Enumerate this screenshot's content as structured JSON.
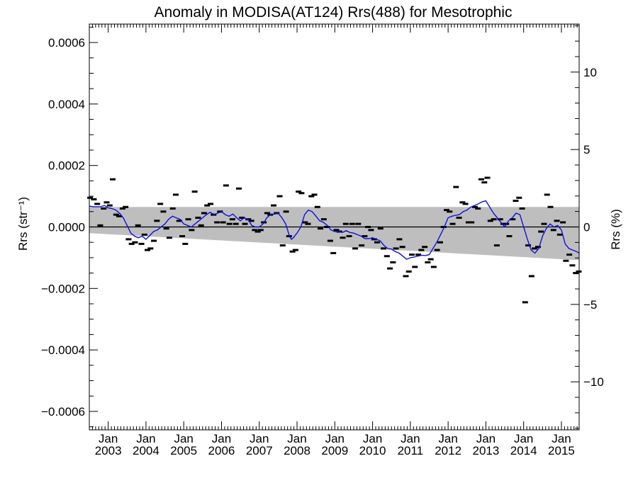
{
  "chart_data": {
    "type": "scatter",
    "title": "Anomaly in MODISA(AT124) Rrs(488) for Mesotrophic",
    "ylabel": "Rrs (str⁻¹)",
    "ylabel_right": "Rrs (%)",
    "xlabel": "",
    "xlim": [
      2002.5,
      2015.47
    ],
    "ylim": [
      -0.00066,
      0.00066
    ],
    "ylim_right": [
      -13.1,
      13.1
    ],
    "x_ticks": [
      {
        "value": 2003.0,
        "month": "Jan",
        "year": "2003"
      },
      {
        "value": 2004.0,
        "month": "Jan",
        "year": "2004"
      },
      {
        "value": 2005.0,
        "month": "Jan",
        "year": "2005"
      },
      {
        "value": 2006.0,
        "month": "Jan",
        "year": "2006"
      },
      {
        "value": 2007.0,
        "month": "Jan",
        "year": "2007"
      },
      {
        "value": 2008.0,
        "month": "Jan",
        "year": "2008"
      },
      {
        "value": 2009.0,
        "month": "Jan",
        "year": "2009"
      },
      {
        "value": 2010.0,
        "month": "Jan",
        "year": "2010"
      },
      {
        "value": 2011.0,
        "month": "Jan",
        "year": "2011"
      },
      {
        "value": 2012.0,
        "month": "Jan",
        "year": "2012"
      },
      {
        "value": 2013.0,
        "month": "Jan",
        "year": "2013"
      },
      {
        "value": 2014.0,
        "month": "Jan",
        "year": "2014"
      },
      {
        "value": 2015.0,
        "month": "Jan",
        "year": "2015"
      }
    ],
    "y_ticks_left": [
      {
        "value": 0.0006,
        "label": "0.0006"
      },
      {
        "value": 0.0004,
        "label": "0.0004"
      },
      {
        "value": 0.0002,
        "label": "0.0002"
      },
      {
        "value": 0.0,
        "label": "0.0000"
      },
      {
        "value": -0.0002,
        "label": "−0.0002"
      },
      {
        "value": -0.0004,
        "label": "−0.0004"
      },
      {
        "value": -0.0006,
        "label": "−0.0006"
      }
    ],
    "y_ticks_right": [
      {
        "value": 10,
        "label": "10"
      },
      {
        "value": 5,
        "label": "5"
      },
      {
        "value": 0,
        "label": "0"
      },
      {
        "value": -5,
        "label": "−5"
      },
      {
        "value": -10,
        "label": "−10"
      }
    ],
    "band": {
      "upper": [
        [
          2002.5,
          6.5e-05
        ],
        [
          2015.47,
          6.5e-05
        ]
      ],
      "lower": [
        [
          2002.5,
          -2e-05
        ],
        [
          2015.47,
          -0.000108
        ]
      ],
      "color": "#bebebe"
    },
    "zero_line": 0,
    "points": [
      {
        "x": 2002.52,
        "y": 9.5e-05
      },
      {
        "x": 2002.62,
        "y": 9e-05
      },
      {
        "x": 2002.71,
        "y": 7.5e-05
      },
      {
        "x": 2002.79,
        "y": 5e-06
      },
      {
        "x": 2002.88,
        "y": 6e-05
      },
      {
        "x": 2002.96,
        "y": 8e-05
      },
      {
        "x": 2003.04,
        "y": 7e-05
      },
      {
        "x": 2003.12,
        "y": 0.000155
      },
      {
        "x": 2003.21,
        "y": 4e-05
      },
      {
        "x": 2003.29,
        "y": 3.5e-05
      },
      {
        "x": 2003.38,
        "y": 6e-05
      },
      {
        "x": 2003.46,
        "y": 6.5e-05
      },
      {
        "x": 2003.54,
        "y": -4e-05
      },
      {
        "x": 2003.62,
        "y": -5.5e-05
      },
      {
        "x": 2003.71,
        "y": -5e-05
      },
      {
        "x": 2003.79,
        "y": 5e-06
      },
      {
        "x": 2003.88,
        "y": -5.5e-05
      },
      {
        "x": 2003.96,
        "y": -2.5e-05
      },
      {
        "x": 2004.04,
        "y": -7.5e-05
      },
      {
        "x": 2004.12,
        "y": -7e-05
      },
      {
        "x": 2004.21,
        "y": -4.5e-05
      },
      {
        "x": 2004.29,
        "y": 2e-05
      },
      {
        "x": 2004.38,
        "y": 7.5e-05
      },
      {
        "x": 2004.46,
        "y": 5e-05
      },
      {
        "x": 2004.54,
        "y": -5e-06
      },
      {
        "x": 2004.62,
        "y": -3.5e-05
      },
      {
        "x": 2004.71,
        "y": 6e-05
      },
      {
        "x": 2004.79,
        "y": 0.000105
      },
      {
        "x": 2004.88,
        "y": 2e-05
      },
      {
        "x": 2004.96,
        "y": -3e-05
      },
      {
        "x": 2005.04,
        "y": -5.5e-05
      },
      {
        "x": 2005.12,
        "y": 2.5e-05
      },
      {
        "x": 2005.21,
        "y": -1e-05
      },
      {
        "x": 2005.29,
        "y": 0.000115
      },
      {
        "x": 2005.38,
        "y": 3e-05
      },
      {
        "x": 2005.46,
        "y": 5e-06
      },
      {
        "x": 2005.54,
        "y": 4.5e-05
      },
      {
        "x": 2005.62,
        "y": 7e-05
      },
      {
        "x": 2005.71,
        "y": 7.5e-05
      },
      {
        "x": 2005.79,
        "y": 4e-05
      },
      {
        "x": 2005.88,
        "y": 1.5e-05
      },
      {
        "x": 2005.96,
        "y": 5e-05
      },
      {
        "x": 2006.04,
        "y": 1.5e-05
      },
      {
        "x": 2006.12,
        "y": 0.000135
      },
      {
        "x": 2006.21,
        "y": 1e-05
      },
      {
        "x": 2006.29,
        "y": 2.5e-05
      },
      {
        "x": 2006.38,
        "y": 1e-05
      },
      {
        "x": 2006.46,
        "y": 0.000125
      },
      {
        "x": 2006.54,
        "y": 3e-05
      },
      {
        "x": 2006.62,
        "y": 1e-05
      },
      {
        "x": 2006.71,
        "y": 2.5e-05
      },
      {
        "x": 2006.79,
        "y": 2e-05
      },
      {
        "x": 2006.88,
        "y": -1e-05
      },
      {
        "x": 2006.96,
        "y": -1.5e-05
      },
      {
        "x": 2007.04,
        "y": -1e-05
      },
      {
        "x": 2007.12,
        "y": 1.5e-05
      },
      {
        "x": 2007.21,
        "y": 4.5e-05
      },
      {
        "x": 2007.29,
        "y": 4e-05
      },
      {
        "x": 2007.38,
        "y": 7e-05
      },
      {
        "x": 2007.46,
        "y": 4.5e-05
      },
      {
        "x": 2007.54,
        "y": 0.0001
      },
      {
        "x": 2007.62,
        "y": -6e-05
      },
      {
        "x": 2007.71,
        "y": 5e-05
      },
      {
        "x": 2007.79,
        "y": -3e-05
      },
      {
        "x": 2007.88,
        "y": -8e-05
      },
      {
        "x": 2007.96,
        "y": -7.5e-05
      },
      {
        "x": 2008.04,
        "y": 0.000115
      },
      {
        "x": 2008.12,
        "y": 0.00011
      },
      {
        "x": 2008.21,
        "y": 1.5e-05
      },
      {
        "x": 2008.29,
        "y": 1e-05
      },
      {
        "x": 2008.38,
        "y": 0.0001
      },
      {
        "x": 2008.46,
        "y": 0.000105
      },
      {
        "x": 2008.54,
        "y": 6.5e-05
      },
      {
        "x": 2008.62,
        "y": -5e-06
      },
      {
        "x": 2008.71,
        "y": 2.5e-05
      },
      {
        "x": 2008.79,
        "y": 0.0
      },
      {
        "x": 2008.88,
        "y": -4.5e-05
      },
      {
        "x": 2008.96,
        "y": -8.5e-05
      },
      {
        "x": 2009.04,
        "y": -1e-05
      },
      {
        "x": 2009.12,
        "y": -1.5e-05
      },
      {
        "x": 2009.21,
        "y": -3.5e-05
      },
      {
        "x": 2009.29,
        "y": 1e-05
      },
      {
        "x": 2009.38,
        "y": -3e-05
      },
      {
        "x": 2009.46,
        "y": 1e-05
      },
      {
        "x": 2009.54,
        "y": -7e-05
      },
      {
        "x": 2009.62,
        "y": 1e-05
      },
      {
        "x": 2009.71,
        "y": -6e-05
      },
      {
        "x": 2009.79,
        "y": -3e-05
      },
      {
        "x": 2009.88,
        "y": 0.0
      },
      {
        "x": 2009.96,
        "y": -1e-05
      },
      {
        "x": 2010.04,
        "y": -4e-05
      },
      {
        "x": 2010.12,
        "y": -5e-05
      },
      {
        "x": 2010.21,
        "y": -5e-06
      },
      {
        "x": 2010.29,
        "y": -7e-05
      },
      {
        "x": 2010.38,
        "y": -9.5e-05
      },
      {
        "x": 2010.46,
        "y": -0.000135
      },
      {
        "x": 2010.54,
        "y": -0.000115
      },
      {
        "x": 2010.62,
        "y": -7e-05
      },
      {
        "x": 2010.71,
        "y": -4e-05
      },
      {
        "x": 2010.79,
        "y": -6.5e-05
      },
      {
        "x": 2010.88,
        "y": -0.00016
      },
      {
        "x": 2010.96,
        "y": -0.000145
      },
      {
        "x": 2011.04,
        "y": -9e-05
      },
      {
        "x": 2011.12,
        "y": -0.00013
      },
      {
        "x": 2011.21,
        "y": -9e-05
      },
      {
        "x": 2011.29,
        "y": -7.5e-05
      },
      {
        "x": 2011.38,
        "y": -6.5e-05
      },
      {
        "x": 2011.46,
        "y": -0.000115
      },
      {
        "x": 2011.54,
        "y": -0.000105
      },
      {
        "x": 2011.62,
        "y": -0.00013
      },
      {
        "x": 2011.71,
        "y": -7.5e-05
      },
      {
        "x": 2011.79,
        "y": -5e-05
      },
      {
        "x": 2011.88,
        "y": 0.0
      },
      {
        "x": 2011.96,
        "y": 5.5e-05
      },
      {
        "x": 2012.04,
        "y": 5e-05
      },
      {
        "x": 2012.12,
        "y": 1e-05
      },
      {
        "x": 2012.21,
        "y": 0.00013
      },
      {
        "x": 2012.29,
        "y": 3e-05
      },
      {
        "x": 2012.38,
        "y": 8e-05
      },
      {
        "x": 2012.46,
        "y": 7.5e-05
      },
      {
        "x": 2012.54,
        "y": 1.5e-05
      },
      {
        "x": 2012.62,
        "y": 1.5e-05
      },
      {
        "x": 2012.71,
        "y": 6.5e-05
      },
      {
        "x": 2012.79,
        "y": 6e-05
      },
      {
        "x": 2012.88,
        "y": 0.000155
      },
      {
        "x": 2012.96,
        "y": 0.000145
      },
      {
        "x": 2013.04,
        "y": 0.00016
      },
      {
        "x": 2013.12,
        "y": 2e-05
      },
      {
        "x": 2013.21,
        "y": 2.5e-05
      },
      {
        "x": 2013.29,
        "y": -6e-05
      },
      {
        "x": 2013.38,
        "y": 2.5e-05
      },
      {
        "x": 2013.46,
        "y": 1e-05
      },
      {
        "x": 2013.54,
        "y": 1e-05
      },
      {
        "x": 2013.62,
        "y": -3e-05
      },
      {
        "x": 2013.71,
        "y": 2.5e-05
      },
      {
        "x": 2013.79,
        "y": 8.5e-05
      },
      {
        "x": 2013.88,
        "y": 9.5e-05
      },
      {
        "x": 2013.96,
        "y": 6e-05
      },
      {
        "x": 2014.04,
        "y": -0.000245
      },
      {
        "x": 2014.12,
        "y": -6e-05
      },
      {
        "x": 2014.21,
        "y": -0.00016
      },
      {
        "x": 2014.29,
        "y": -7e-05
      },
      {
        "x": 2014.38,
        "y": -6.5e-05
      },
      {
        "x": 2014.46,
        "y": -1.5e-05
      },
      {
        "x": 2014.54,
        "y": 1e-05
      },
      {
        "x": 2014.62,
        "y": 0.000105
      },
      {
        "x": 2014.71,
        "y": 6.5e-05
      },
      {
        "x": 2014.79,
        "y": -1e-05
      },
      {
        "x": 2014.88,
        "y": 2e-05
      },
      {
        "x": 2014.96,
        "y": -2.5e-05
      },
      {
        "x": 2015.04,
        "y": 1.5e-05
      },
      {
        "x": 2015.12,
        "y": -0.00011
      },
      {
        "x": 2015.21,
        "y": -9e-05
      },
      {
        "x": 2015.29,
        "y": -0.000125
      },
      {
        "x": 2015.38,
        "y": -0.00015
      },
      {
        "x": 2015.46,
        "y": -0.000145
      }
    ],
    "running_mean": [
      [
        2002.5,
        6.8e-05
      ],
      [
        2002.6,
        6.6e-05
      ],
      [
        2002.7,
        6.6e-05
      ],
      [
        2002.8,
        6.6e-05
      ],
      [
        2002.9,
        7e-05
      ],
      [
        2003.0,
        6.2e-05
      ],
      [
        2003.1,
        6e-05
      ],
      [
        2003.2,
        5.5e-05
      ],
      [
        2003.3,
        4.5e-05
      ],
      [
        2003.4,
        3e-05
      ],
      [
        2003.5,
        5e-06
      ],
      [
        2003.6,
        -2e-05
      ],
      [
        2003.7,
        -3e-05
      ],
      [
        2003.8,
        -3.5e-05
      ],
      [
        2003.9,
        -3e-05
      ],
      [
        2004.0,
        -4e-05
      ],
      [
        2004.1,
        -2.8e-05
      ],
      [
        2004.2,
        -1.5e-05
      ],
      [
        2004.3,
        -1e-05
      ],
      [
        2004.4,
        0.0
      ],
      [
        2004.5,
        1e-05
      ],
      [
        2004.6,
        2.5e-05
      ],
      [
        2004.7,
        3.5e-05
      ],
      [
        2004.8,
        3e-05
      ],
      [
        2004.9,
        2.5e-05
      ],
      [
        2005.0,
        1e-05
      ],
      [
        2005.1,
        5e-06
      ],
      [
        2005.2,
        0.0
      ],
      [
        2005.3,
        1e-05
      ],
      [
        2005.4,
        2e-05
      ],
      [
        2005.5,
        3e-05
      ],
      [
        2005.6,
        4e-05
      ],
      [
        2005.7,
        4.8e-05
      ],
      [
        2005.8,
        4e-05
      ],
      [
        2005.9,
        4.5e-05
      ],
      [
        2006.0,
        5e-05
      ],
      [
        2006.1,
        4e-05
      ],
      [
        2006.2,
        3.5e-05
      ],
      [
        2006.3,
        4.2e-05
      ],
      [
        2006.4,
        3e-05
      ],
      [
        2006.5,
        2e-05
      ],
      [
        2006.6,
        3e-05
      ],
      [
        2006.7,
        2.5e-05
      ],
      [
        2006.8,
        5e-06
      ],
      [
        2006.9,
        0.0
      ],
      [
        2007.0,
        0.0
      ],
      [
        2007.1,
        1e-05
      ],
      [
        2007.2,
        3e-05
      ],
      [
        2007.3,
        4e-05
      ],
      [
        2007.4,
        4.2e-05
      ],
      [
        2007.5,
        4.5e-05
      ],
      [
        2007.6,
        3e-05
      ],
      [
        2007.7,
        1e-05
      ],
      [
        2007.8,
        -3e-05
      ],
      [
        2007.85,
        -4e-05
      ],
      [
        2007.9,
        -3.5e-05
      ],
      [
        2008.0,
        -2e-05
      ],
      [
        2008.1,
        0.0
      ],
      [
        2008.2,
        4e-05
      ],
      [
        2008.3,
        5.5e-05
      ],
      [
        2008.4,
        5e-05
      ],
      [
        2008.5,
        3.5e-05
      ],
      [
        2008.6,
        2e-05
      ],
      [
        2008.7,
        1.5e-05
      ],
      [
        2008.8,
        5e-06
      ],
      [
        2008.9,
        -1e-05
      ],
      [
        2009.0,
        -1.5e-05
      ],
      [
        2009.1,
        -1.5e-05
      ],
      [
        2009.2,
        -1.8e-05
      ],
      [
        2009.3,
        -1.2e-05
      ],
      [
        2009.4,
        -1.8e-05
      ],
      [
        2009.5,
        -2e-05
      ],
      [
        2009.6,
        -2.5e-05
      ],
      [
        2009.7,
        -3e-05
      ],
      [
        2009.8,
        -3.8e-05
      ],
      [
        2009.9,
        -3.8e-05
      ],
      [
        2010.0,
        -3.5e-05
      ],
      [
        2010.1,
        -4e-05
      ],
      [
        2010.2,
        -4.5e-05
      ],
      [
        2010.3,
        -6e-05
      ],
      [
        2010.4,
        -7e-05
      ],
      [
        2010.5,
        -7.2e-05
      ],
      [
        2010.6,
        -8e-05
      ],
      [
        2010.7,
        -8.5e-05
      ],
      [
        2010.8,
        -9.5e-05
      ],
      [
        2010.9,
        -0.000105
      ],
      [
        2011.0,
        -0.0001
      ],
      [
        2011.1,
        -9.8e-05
      ],
      [
        2011.2,
        -9.5e-05
      ],
      [
        2011.3,
        -9.2e-05
      ],
      [
        2011.4,
        -9.3e-05
      ],
      [
        2011.5,
        -9e-05
      ],
      [
        2011.6,
        -7e-05
      ],
      [
        2011.7,
        -5e-05
      ],
      [
        2011.8,
        -2.5e-05
      ],
      [
        2011.9,
        0.0
      ],
      [
        2012.0,
        3e-05
      ],
      [
        2012.1,
        3.5e-05
      ],
      [
        2012.2,
        3.8e-05
      ],
      [
        2012.3,
        4e-05
      ],
      [
        2012.4,
        5e-05
      ],
      [
        2012.5,
        5.5e-05
      ],
      [
        2012.6,
        6.5e-05
      ],
      [
        2012.7,
        7e-05
      ],
      [
        2012.8,
        7.5e-05
      ],
      [
        2012.9,
        8.2e-05
      ],
      [
        2013.0,
        8.5e-05
      ],
      [
        2013.1,
        6.5e-05
      ],
      [
        2013.2,
        4.5e-05
      ],
      [
        2013.3,
        3e-05
      ],
      [
        2013.4,
        1.5e-05
      ],
      [
        2013.5,
        0.0
      ],
      [
        2013.6,
        2e-05
      ],
      [
        2013.7,
        3e-05
      ],
      [
        2013.8,
        4.5e-05
      ],
      [
        2013.9,
        4e-05
      ],
      [
        2014.0,
        0.0
      ],
      [
        2014.1,
        -4e-05
      ],
      [
        2014.2,
        -7.5e-05
      ],
      [
        2014.3,
        -8.5e-05
      ],
      [
        2014.4,
        -7e-05
      ],
      [
        2014.5,
        -3e-05
      ],
      [
        2014.6,
        -5e-06
      ],
      [
        2014.7,
        1e-05
      ],
      [
        2014.8,
        0.0
      ],
      [
        2014.9,
        5e-06
      ],
      [
        2015.0,
        -1e-05
      ],
      [
        2015.1,
        -5.5e-05
      ],
      [
        2015.2,
        -7e-05
      ],
      [
        2015.3,
        -7.5e-05
      ],
      [
        2015.4,
        -8e-05
      ],
      [
        2015.47,
        -8.5e-05
      ]
    ],
    "colors": {
      "band": "#bebebe",
      "running_mean": "#1010e0",
      "points": "#000000",
      "axes": "#000000"
    }
  }
}
